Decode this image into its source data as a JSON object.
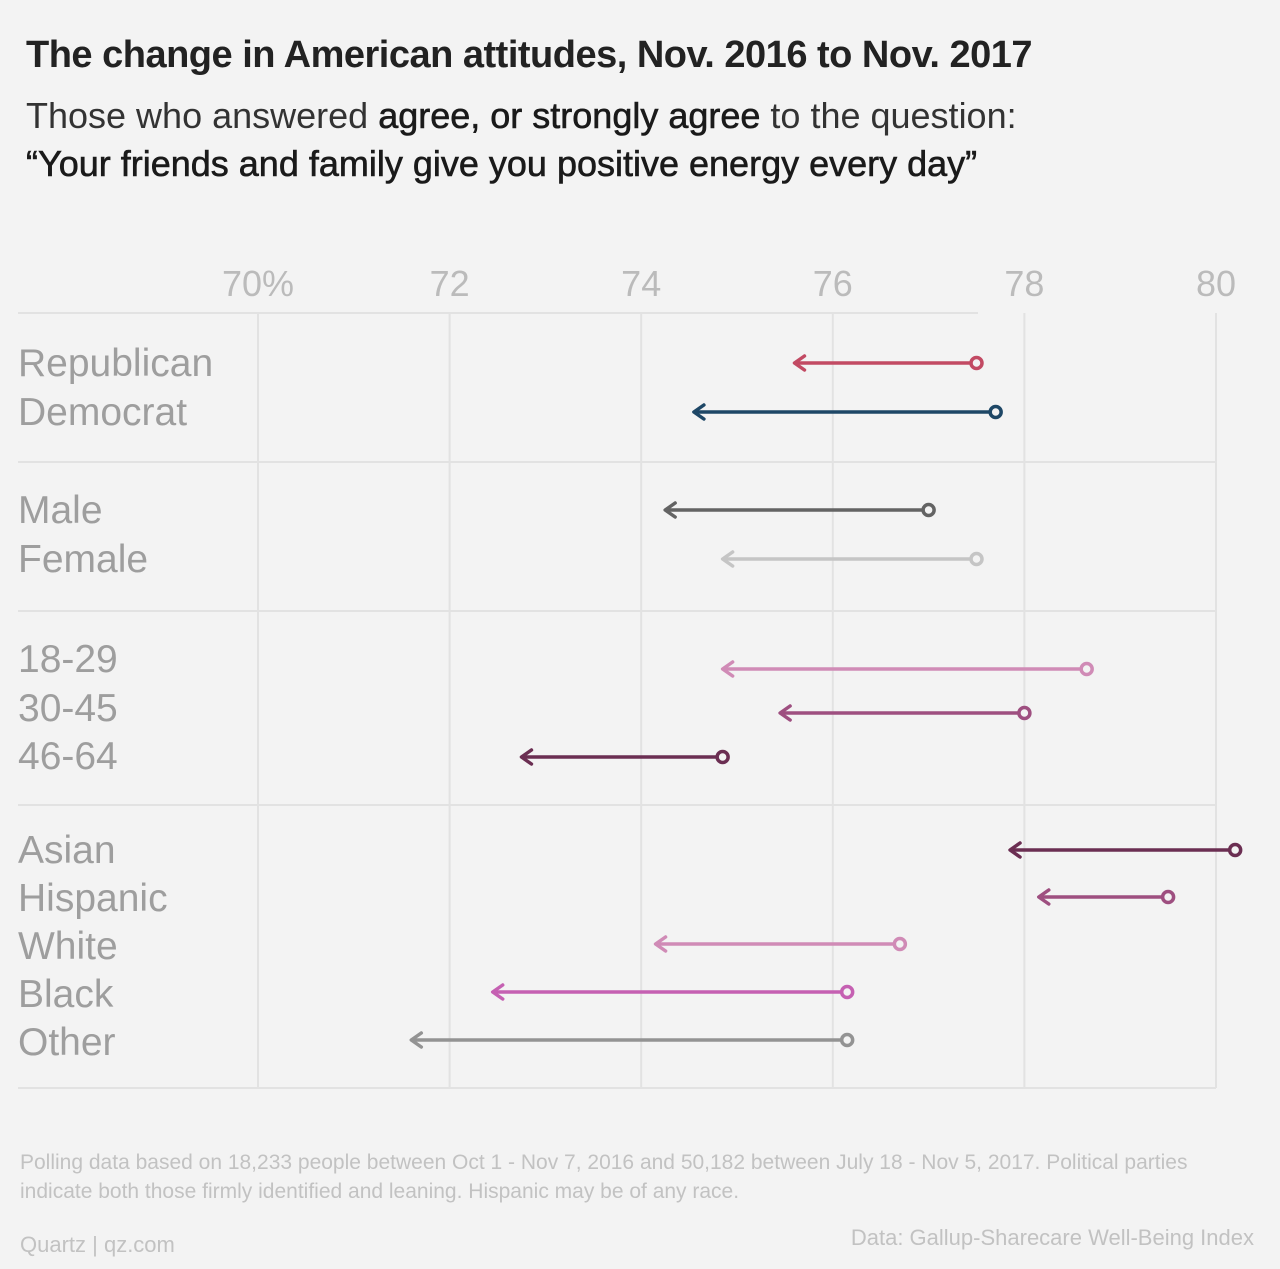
{
  "title": "The change in American attitudes, Nov. 2016 to Nov. 2017",
  "subtitle": {
    "pre": "Those who answered ",
    "bold": "agree, or strongly agree",
    "post": " to the question:",
    "question": "“Your friends and family give you positive energy every day”"
  },
  "chart_data": {
    "type": "arrow-dumbbell",
    "x_ticks": [
      {
        "value": 70,
        "label": "70%"
      },
      {
        "value": 72,
        "label": "72"
      },
      {
        "value": 74,
        "label": "74"
      },
      {
        "value": 76,
        "label": "76"
      },
      {
        "value": 78,
        "label": "78"
      },
      {
        "value": 80,
        "label": "80"
      }
    ],
    "xlim": [
      69.5,
      80.25
    ],
    "groups": [
      {
        "rows": [
          {
            "label": "Republican",
            "from_2016": 77.5,
            "to_2017": 75.6,
            "color": "#c24a63"
          },
          {
            "label": "Democrat",
            "from_2016": 77.7,
            "to_2017": 74.55,
            "color": "#1e4766"
          }
        ]
      },
      {
        "rows": [
          {
            "label": "Male",
            "from_2016": 77.0,
            "to_2017": 74.25,
            "color": "#636363"
          },
          {
            "label": "Female",
            "from_2016": 77.5,
            "to_2017": 74.85,
            "color": "#c5c5c5"
          }
        ]
      },
      {
        "rows": [
          {
            "label": "18-29",
            "from_2016": 78.65,
            "to_2017": 74.85,
            "color": "#d08bb6"
          },
          {
            "label": "30-45",
            "from_2016": 78.0,
            "to_2017": 75.45,
            "color": "#9e4f80"
          },
          {
            "label": "46-64",
            "from_2016": 74.85,
            "to_2017": 72.75,
            "color": "#6b2e52"
          }
        ]
      },
      {
        "rows": [
          {
            "label": "Asian",
            "from_2016": 80.2,
            "to_2017": 77.85,
            "color": "#6b2e52"
          },
          {
            "label": "Hispanic",
            "from_2016": 79.5,
            "to_2017": 78.15,
            "color": "#9e4f80"
          },
          {
            "label": "White",
            "from_2016": 76.7,
            "to_2017": 74.15,
            "color": "#d08bb6"
          },
          {
            "label": "Black",
            "from_2016": 76.15,
            "to_2017": 72.45,
            "color": "#c560b2"
          },
          {
            "label": "Other",
            "from_2016": 76.15,
            "to_2017": 71.6,
            "color": "#939393"
          }
        ]
      }
    ]
  },
  "footnote": "Polling data based on 18,233 people between Oct 1 - Nov 7, 2016 and 50,182 between July 18 - Nov 5, 2017. Political parties indicate both those firmly identified and leaning. Hispanic may be of any race.",
  "credit": "Quartz | qz.com",
  "source": "Data: Gallup-Sharecare Well-Being Index"
}
